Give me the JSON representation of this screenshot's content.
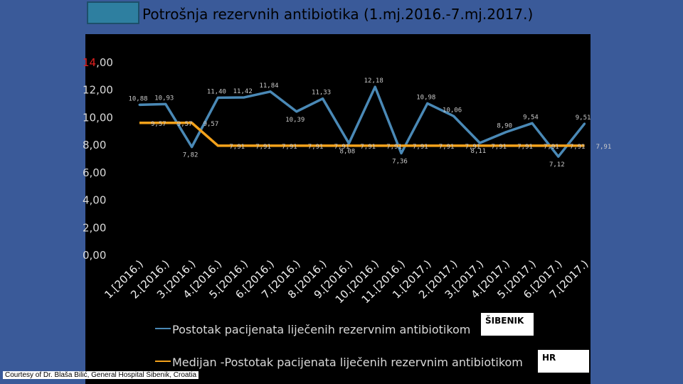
{
  "title": "Potrošnja rezervnih antibiotika (1.mj.2016.-7.mj.2017.)",
  "courtesy": "Courtesy of Dr. Blaša Bilić, General Hospital Šibenik, Croatia",
  "badges": {
    "sibenik": "ŠIBENIK",
    "hr": "HR"
  },
  "colors": {
    "series1": "#4a89b6",
    "series2": "#f4a21b",
    "axis_text": "#d9d9d9",
    "label_text": "#c9c9c9"
  },
  "chart_data": {
    "type": "line",
    "categories": [
      "1.[2016.)",
      "2.[2016.)",
      "3.[2016.)",
      "4.[2016.)",
      "5.[2016.)",
      "6.[2016.)",
      "7.[2016.)",
      "8.[2016.)",
      "9.[2016.)",
      "10.[2016.)",
      "11.[2016.)",
      "1.[2017.)",
      "2.[2017.)",
      "3.[2017.)",
      "4.[2017.)",
      "5.[2017.)",
      "6.[2017.)",
      "7.[2017.)"
    ],
    "ylim": [
      0,
      14
    ],
    "yticks": [
      "0,00",
      "2,00",
      "4,00",
      "6,00",
      "8,00",
      "10,00",
      "12,00",
      "14,00"
    ],
    "series": [
      {
        "name": "Postotak pacijenata liječenih rezervnim antibiotikom",
        "values": [
          10.88,
          10.93,
          7.82,
          11.4,
          11.42,
          11.84,
          10.39,
          11.33,
          8.08,
          12.18,
          7.36,
          10.98,
          10.06,
          8.11,
          8.9,
          9.54,
          7.12,
          9.51
        ],
        "labels": [
          "10,88",
          "10,93",
          "7,82",
          "11,40",
          "11,42",
          "11,84",
          "10,39",
          "11,33",
          "8,08",
          "12,18",
          "7,36",
          "10,98",
          "10,06",
          "8,11",
          "8,90",
          "9,54",
          "7,12",
          "9,51"
        ]
      },
      {
        "name": "Medijan -Postotak pacijenata liječenih rezervnim antibiotikom",
        "values": [
          9.57,
          9.57,
          9.57,
          7.91,
          7.91,
          7.91,
          7.91,
          7.91,
          7.91,
          7.91,
          7.91,
          7.91,
          7.91,
          7.91,
          7.91,
          7.91,
          7.91,
          7.91
        ],
        "labels": [
          "9,57",
          "9,57",
          "9,57",
          "7,91",
          "7,91",
          "7,91",
          "7,91",
          "7,91",
          "7,91",
          "7,91",
          "7,91",
          "7,91",
          "7,91",
          "7,91",
          "7,91",
          "7,91",
          "7,91",
          "7,91"
        ]
      }
    ]
  }
}
